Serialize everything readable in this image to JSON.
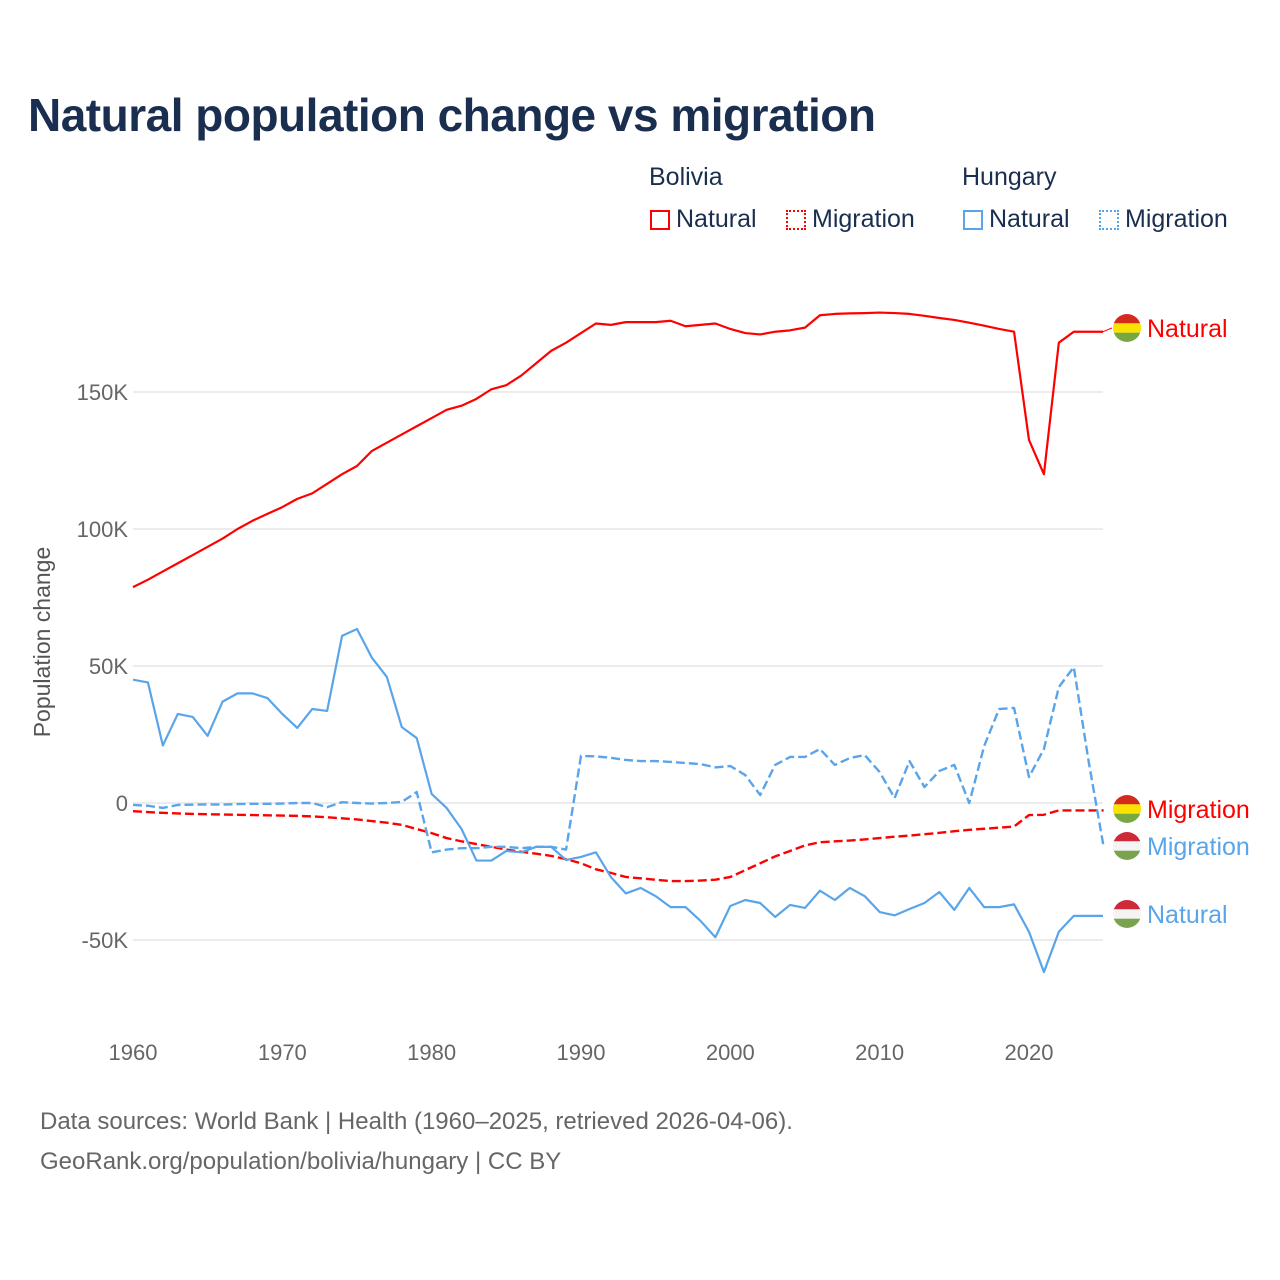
{
  "title": "Natural population change vs migration",
  "legend": {
    "groups": [
      {
        "name": "Bolivia",
        "items": [
          "Natural",
          "Migration"
        ]
      },
      {
        "name": "Hungary",
        "items": [
          "Natural",
          "Migration"
        ]
      }
    ]
  },
  "colors": {
    "bolivia": "#ff0000",
    "hungary": "#5aa5ea"
  },
  "footer": {
    "line1": "Data sources: World Bank | Health (1960–2025, retrieved 2026-04-06).",
    "line2": "GeoRank.org/population/bolivia/hungary | CC BY"
  },
  "chart_data": {
    "type": "line",
    "title": "Natural population change vs migration",
    "xlabel": "",
    "ylabel": "Population change",
    "xlim": [
      1960,
      2025
    ],
    "ylim": [
      -65,
      185
    ],
    "x_ticks": [
      1960,
      1970,
      1980,
      1990,
      2000,
      2010,
      2020
    ],
    "x_tick_labels": [
      "1960",
      "1970",
      "1980",
      "1990",
      "2000",
      "2010",
      "2020"
    ],
    "y_ticks": [
      -50,
      0,
      50,
      100,
      150
    ],
    "y_tick_labels": [
      "-50K",
      "0",
      "50K",
      "100K",
      "150K"
    ],
    "units": "thousands",
    "grid": true,
    "legend_position": "top-right",
    "series": [
      {
        "name": "Bolivia Natural",
        "end_label": "Natural",
        "country": "bolivia",
        "style": "solid",
        "start_year": 1960,
        "values": [
          78.8,
          81.5,
          84.5,
          87.5,
          90.5,
          93.5,
          96.5,
          100,
          103,
          105.5,
          108,
          111,
          113,
          116.5,
          120,
          123,
          128.5,
          131.5,
          134.5,
          137.5,
          140.5,
          143.5,
          145,
          147.5,
          151,
          152.5,
          156,
          160.5,
          165,
          168,
          171.5,
          175,
          174.5,
          175.5,
          175.5,
          175.5,
          176,
          174,
          174.5,
          175,
          173,
          171.5,
          171,
          172,
          172.5,
          173.5,
          178,
          178.5,
          178.7,
          178.8,
          179,
          178.8,
          178.5,
          177.8,
          177,
          176.3,
          175.3,
          174.2,
          173,
          172,
          132.5,
          120,
          168,
          172,
          172
        ]
      },
      {
        "name": "Bolivia Migration",
        "end_label": "Migration",
        "country": "bolivia",
        "style": "dashed",
        "start_year": 1960,
        "values": [
          -3,
          -3.3,
          -3.6,
          -3.8,
          -4,
          -4.1,
          -4.2,
          -4.3,
          -4.4,
          -4.5,
          -4.6,
          -4.7,
          -4.9,
          -5.2,
          -5.6,
          -6,
          -6.6,
          -7.2,
          -8,
          -9.5,
          -11,
          -12.8,
          -14,
          -15,
          -16,
          -17,
          -17.8,
          -18.5,
          -19.3,
          -20.5,
          -22,
          -24.2,
          -25.5,
          -27,
          -27.5,
          -28,
          -28.5,
          -28.5,
          -28.3,
          -28,
          -27,
          -24.5,
          -22,
          -19.5,
          -17.5,
          -15.5,
          -14.3,
          -14,
          -13.7,
          -13.3,
          -12.8,
          -12.3,
          -11.9,
          -11.4,
          -10.9,
          -10.3,
          -9.8,
          -9.4,
          -9,
          -8.6,
          -4.4,
          -4.3,
          -2.7,
          -2.7,
          -2.7,
          -2.7
        ]
      },
      {
        "name": "Hungary Natural",
        "end_label": "Natural",
        "country": "hungary",
        "style": "solid",
        "start_year": 1960,
        "values": [
          45,
          44,
          21,
          32.5,
          31.4,
          24.5,
          37,
          40,
          40,
          38.3,
          32.5,
          27.4,
          34.3,
          33.6,
          61,
          63.5,
          53,
          46,
          27.7,
          23.7,
          3.3,
          -1.8,
          -9.5,
          -21,
          -21,
          -17.5,
          -18,
          -16,
          -16,
          -20.8,
          -19.7,
          -18,
          -27,
          -33,
          -31,
          -34,
          -38,
          -38,
          -43,
          -49,
          -37.6,
          -35.4,
          -36.5,
          -41.6,
          -37.2,
          -38.3,
          -32,
          -35.4,
          -31,
          -34,
          -39.8,
          -41,
          -38.7,
          -36.5,
          -32.5,
          -39,
          -31,
          -38,
          -38,
          -37,
          -47,
          -61.7,
          -47,
          -41.2,
          -41.2
        ]
      },
      {
        "name": "Hungary Migration",
        "end_label": "Migration",
        "country": "hungary",
        "style": "dashed",
        "start_year": 1960,
        "values": [
          -0.7,
          -1,
          -1.8,
          -0.7,
          -0.6,
          -0.5,
          -0.6,
          -0.4,
          -0.3,
          -0.3,
          -0.2,
          0,
          0,
          -1.5,
          0.3,
          0,
          -0.2,
          0,
          0.4,
          4,
          -18,
          -17,
          -16.5,
          -16.5,
          -16,
          -16,
          -16.5,
          -16,
          -16,
          -17,
          17.2,
          17,
          16.5,
          15.7,
          15.3,
          15.3,
          15,
          14.6,
          14.2,
          13,
          13.5,
          10.2,
          2.9,
          13.9,
          16.8,
          16.8,
          19.7,
          13.9,
          16.4,
          17.5,
          11.3,
          1.8,
          15.3,
          5.8,
          11.7,
          13.9,
          0,
          20.8,
          34.3,
          34.7,
          9.5,
          19.7,
          42.3,
          49.6,
          15,
          -16
        ]
      }
    ]
  }
}
